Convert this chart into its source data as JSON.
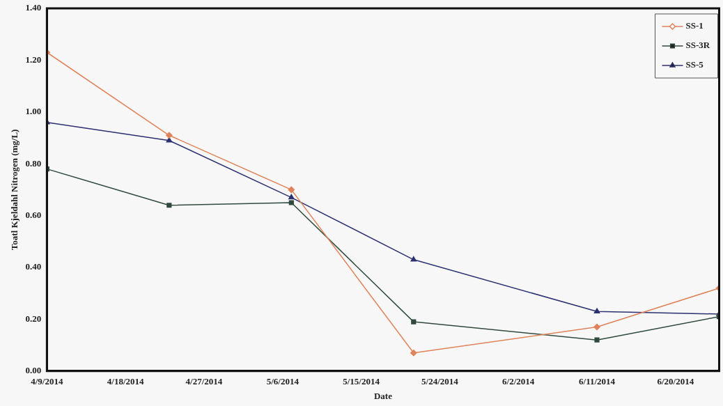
{
  "chart_data": {
    "type": "line",
    "xlabel": "Date",
    "ylabel": "Toatl Kjeldahl Nitrogen (mg/L)",
    "x": [
      "2014-04-09",
      "2014-04-23",
      "2014-05-07",
      "2014-05-21",
      "2014-06-11",
      "2014-06-25"
    ],
    "series": [
      {
        "name": "SS-1",
        "color": "#e0825a",
        "marker": "diamond",
        "values": [
          1.23,
          0.91,
          0.7,
          0.07,
          0.17,
          0.32
        ]
      },
      {
        "name": "SS-3R",
        "color": "#2f4a3c",
        "marker": "square",
        "values": [
          0.78,
          0.64,
          0.65,
          0.19,
          0.12,
          0.21
        ]
      },
      {
        "name": "SS-5",
        "color": "#2c3070",
        "marker": "triangle",
        "values": [
          0.96,
          0.89,
          0.67,
          0.43,
          0.23,
          0.22
        ]
      }
    ],
    "xlim": [
      "2014-04-09",
      "2014-06-25"
    ],
    "xticks": [
      {
        "value": "2014-04-09",
        "label": "4/9/2014"
      },
      {
        "value": "2014-04-18",
        "label": "4/18/2014"
      },
      {
        "value": "2014-04-27",
        "label": "4/27/2014"
      },
      {
        "value": "2014-05-06",
        "label": "5/6/2014"
      },
      {
        "value": "2014-05-15",
        "label": "5/15/2014"
      },
      {
        "value": "2014-05-24",
        "label": "5/24/2014"
      },
      {
        "value": "2014-06-02",
        "label": "6/2/2014"
      },
      {
        "value": "2014-06-11",
        "label": "6/11/2014"
      },
      {
        "value": "2014-06-20",
        "label": "6/20/2014"
      }
    ],
    "ylim": [
      0,
      1.4
    ],
    "yticks": [
      {
        "value": 0,
        "label": "0.00"
      },
      {
        "value": 0.2,
        "label": "0.20"
      },
      {
        "value": 0.4,
        "label": "0.40"
      },
      {
        "value": 0.6,
        "label": "0.60"
      },
      {
        "value": 0.8,
        "label": "0.80"
      },
      {
        "value": 1.0,
        "label": "1.00"
      },
      {
        "value": 1.2,
        "label": "1.20"
      },
      {
        "value": 1.4,
        "label": "1.40"
      }
    ],
    "grid": false,
    "legend": "top right",
    "line_style": "solid"
  }
}
